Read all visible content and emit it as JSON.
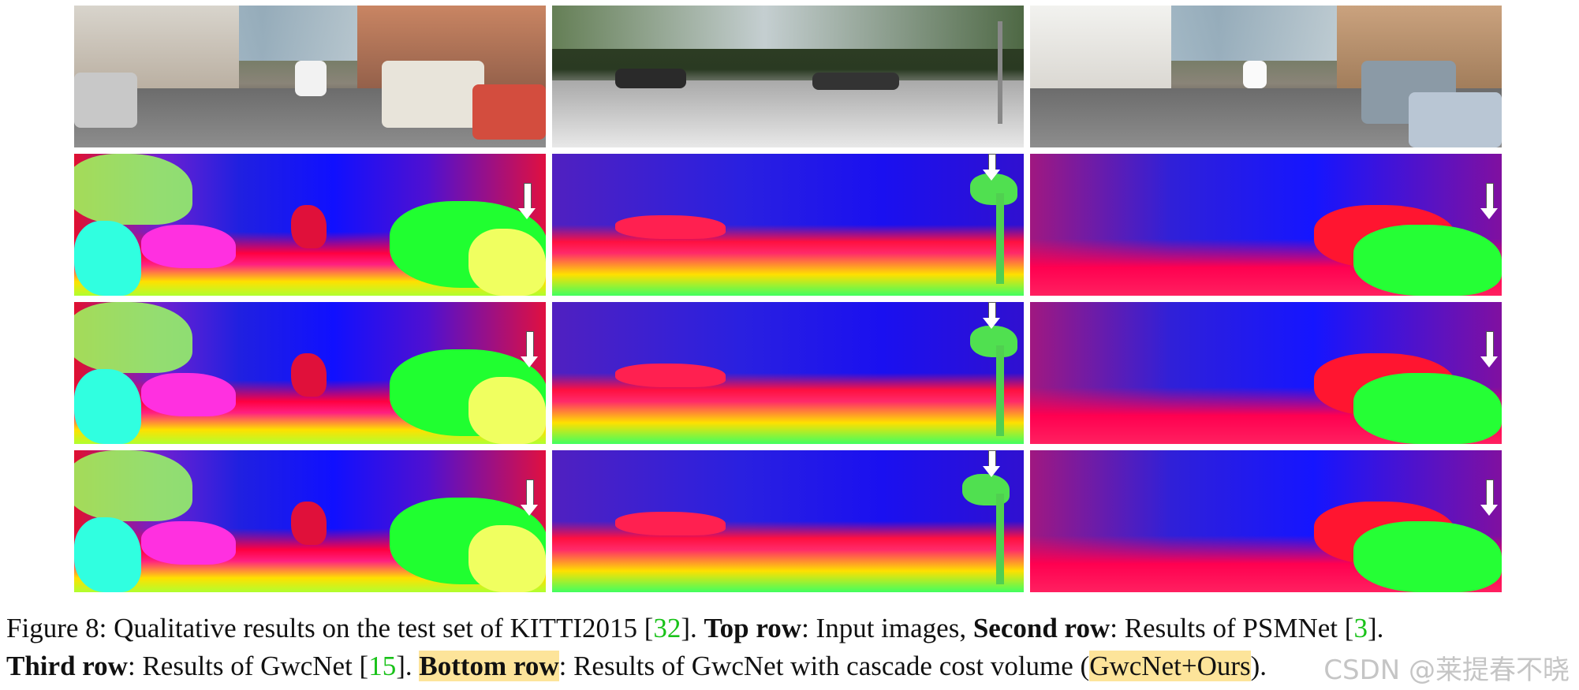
{
  "figure": {
    "rows": [
      "input",
      "psmnet",
      "gwcnet",
      "gwcnet_ours"
    ],
    "columns": 3,
    "arrow_icon": "down-arrow-icon"
  },
  "caption": {
    "line1_a": "Figure 8: Qualitative results on the test set of KITTI2015 [",
    "line1_cite1": "32",
    "line1_b": "]. ",
    "line1_bold1": "Top row",
    "line1_c": ": Input images, ",
    "line1_bold2": "Second row",
    "line1_d": ": Results of PSMNet [",
    "line1_cite2": "3",
    "line1_e": "].",
    "line2_bold1": "Third row",
    "line2_a": ": Results of GwcNet  [",
    "line2_cite": "15",
    "line2_b": "]. ",
    "line2_bold2": "Bottom row",
    "line2_c": ": Results of GwcNet with cascade cost volume (",
    "line2_d": "GwcNet+Ours",
    "line2_e": ")."
  },
  "watermark": "CSDN @莱提春不晓",
  "colors": {
    "cite": "#19c219",
    "highlight": "#fde49a"
  }
}
